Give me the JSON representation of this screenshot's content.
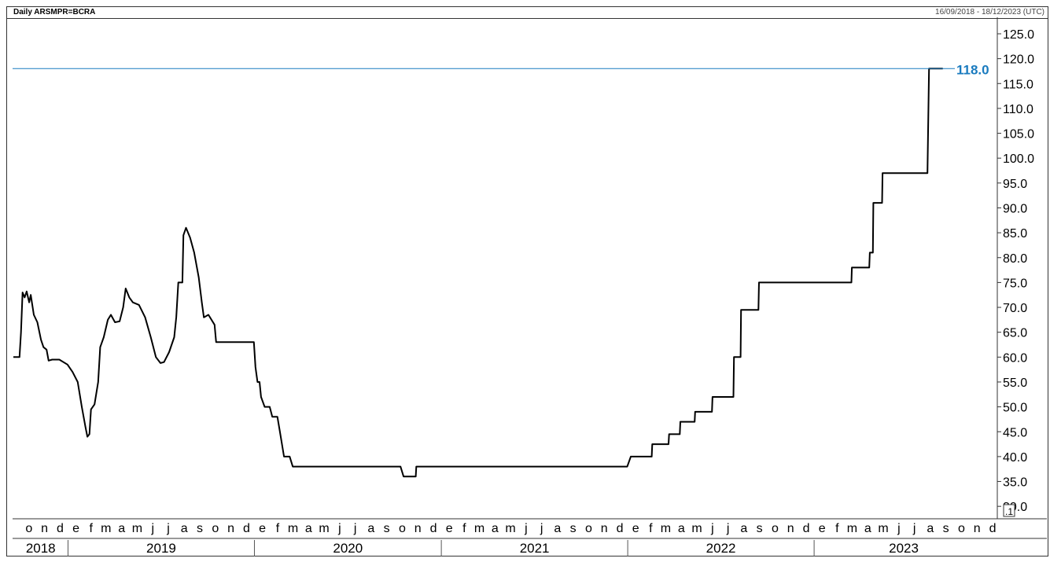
{
  "header": {
    "title": "Daily ARSMPR=BCRA",
    "date_range": "16/09/2018 - 18/12/2023 (UTC)"
  },
  "colors": {
    "series": "#000000",
    "last_line": "#1a7bbf"
  },
  "pane_marker": ".1",
  "chart_data": {
    "type": "line",
    "title": "Daily ARSMPR=BCRA",
    "xlabel": "",
    "ylabel": "",
    "x_range": [
      "2018-09-16",
      "2023-12-18"
    ],
    "ylim": [
      27.5,
      128
    ],
    "y_ticks": [
      "125.0",
      "120.0",
      "115.0",
      "110.0",
      "105.0",
      "100.0",
      "95.0",
      "90.0",
      "85.0",
      "80.0",
      "75.0",
      "70.0",
      "65.0",
      "60.0",
      "55.0",
      "50.0",
      "45.0",
      "40.0",
      "35.0",
      "30.0"
    ],
    "month_ticks": [
      "o",
      "n",
      "d",
      "e",
      "f",
      "m",
      "a",
      "m",
      "j",
      "j",
      "a",
      "s",
      "o",
      "n",
      "d",
      "e",
      "f",
      "m",
      "a",
      "m",
      "j",
      "j",
      "a",
      "s",
      "o",
      "n",
      "d",
      "e",
      "f",
      "m",
      "a",
      "m",
      "j",
      "j",
      "a",
      "s",
      "o",
      "n",
      "d",
      "e",
      "f",
      "m",
      "a",
      "m",
      "j",
      "j",
      "a",
      "s",
      "o",
      "n",
      "d",
      "e",
      "f",
      "m",
      "a",
      "m",
      "j",
      "j",
      "a",
      "s",
      "o",
      "n",
      "d"
    ],
    "years": [
      "2018",
      "2019",
      "2020",
      "2021",
      "2022",
      "2023"
    ],
    "last_value": 118.0,
    "last_value_label": "118.0",
    "series": [
      {
        "points": [
          [
            "2018-09-16",
            60.0
          ],
          [
            "2018-09-28",
            60.0
          ],
          [
            "2018-10-01",
            65.0
          ],
          [
            "2018-10-04",
            73.0
          ],
          [
            "2018-10-08",
            72.0
          ],
          [
            "2018-10-12",
            73.2
          ],
          [
            "2018-10-17",
            71.0
          ],
          [
            "2018-10-20",
            72.5
          ],
          [
            "2018-10-26",
            68.5
          ],
          [
            "2018-11-02",
            67.0
          ],
          [
            "2018-11-09",
            63.5
          ],
          [
            "2018-11-14",
            62.0
          ],
          [
            "2018-11-20",
            61.5
          ],
          [
            "2018-11-24",
            59.3
          ],
          [
            "2018-12-01",
            59.5
          ],
          [
            "2018-12-15",
            59.5
          ],
          [
            "2018-12-31",
            58.5
          ],
          [
            "2019-01-10",
            57.0
          ],
          [
            "2019-01-20",
            55.0
          ],
          [
            "2019-01-28",
            50.0
          ],
          [
            "2019-02-04",
            46.0
          ],
          [
            "2019-02-08",
            44.0
          ],
          [
            "2019-02-12",
            44.5
          ],
          [
            "2019-02-15",
            49.5
          ],
          [
            "2019-02-22",
            50.5
          ],
          [
            "2019-03-01",
            55.0
          ],
          [
            "2019-03-05",
            62.0
          ],
          [
            "2019-03-12",
            64.0
          ],
          [
            "2019-03-20",
            67.5
          ],
          [
            "2019-03-26",
            68.5
          ],
          [
            "2019-04-03",
            67.0
          ],
          [
            "2019-04-12",
            67.2
          ],
          [
            "2019-04-19",
            70.0
          ],
          [
            "2019-04-24",
            73.8
          ],
          [
            "2019-05-01",
            72.0
          ],
          [
            "2019-05-08",
            71.0
          ],
          [
            "2019-05-20",
            70.5
          ],
          [
            "2019-06-01",
            68.0
          ],
          [
            "2019-06-12",
            64.0
          ],
          [
            "2019-06-22",
            60.0
          ],
          [
            "2019-07-01",
            58.8
          ],
          [
            "2019-07-08",
            59.0
          ],
          [
            "2019-07-18",
            61.0
          ],
          [
            "2019-07-28",
            64.0
          ],
          [
            "2019-08-01",
            68.0
          ],
          [
            "2019-08-05",
            75.0
          ],
          [
            "2019-08-13",
            75.0
          ],
          [
            "2019-08-15",
            84.5
          ],
          [
            "2019-08-20",
            86.0
          ],
          [
            "2019-08-28",
            84.0
          ],
          [
            "2019-09-05",
            81.0
          ],
          [
            "2019-09-14",
            76.0
          ],
          [
            "2019-09-20",
            71.0
          ],
          [
            "2019-09-24",
            68.0
          ],
          [
            "2019-10-03",
            68.5
          ],
          [
            "2019-10-15",
            66.5
          ],
          [
            "2019-10-18",
            63.0
          ],
          [
            "2019-12-31",
            63.0
          ],
          [
            "2020-01-03",
            58.0
          ],
          [
            "2020-01-07",
            55.0
          ],
          [
            "2020-01-11",
            55.0
          ],
          [
            "2020-01-14",
            52.0
          ],
          [
            "2020-01-21",
            50.0
          ],
          [
            "2020-01-31",
            50.0
          ],
          [
            "2020-02-05",
            48.0
          ],
          [
            "2020-02-15",
            48.0
          ],
          [
            "2020-02-20",
            45.0
          ],
          [
            "2020-02-28",
            40.0
          ],
          [
            "2020-03-10",
            40.0
          ],
          [
            "2020-03-16",
            38.0
          ],
          [
            "2020-10-13",
            38.0
          ],
          [
            "2020-10-19",
            36.0
          ],
          [
            "2020-11-12",
            36.0
          ],
          [
            "2020-11-13",
            38.0
          ],
          [
            "2021-12-31",
            38.0
          ],
          [
            "2022-01-07",
            40.0
          ],
          [
            "2022-02-17",
            40.0
          ],
          [
            "2022-02-18",
            42.5
          ],
          [
            "2022-03-22",
            42.5
          ],
          [
            "2022-03-23",
            44.5
          ],
          [
            "2022-04-13",
            44.5
          ],
          [
            "2022-04-14",
            47.0
          ],
          [
            "2022-05-12",
            47.0
          ],
          [
            "2022-05-13",
            49.0
          ],
          [
            "2022-06-15",
            49.0
          ],
          [
            "2022-06-16",
            52.0
          ],
          [
            "2022-07-27",
            52.0
          ],
          [
            "2022-07-28",
            60.0
          ],
          [
            "2022-08-10",
            60.0
          ],
          [
            "2022-08-11",
            69.5
          ],
          [
            "2022-09-14",
            69.5
          ],
          [
            "2022-09-15",
            75.0
          ],
          [
            "2023-03-15",
            75.0
          ],
          [
            "2023-03-16",
            78.0
          ],
          [
            "2023-04-19",
            78.0
          ],
          [
            "2023-04-20",
            81.0
          ],
          [
            "2023-04-26",
            81.0
          ],
          [
            "2023-04-27",
            91.0
          ],
          [
            "2023-05-14",
            91.0
          ],
          [
            "2023-05-15",
            97.0
          ],
          [
            "2023-08-11",
            97.0
          ],
          [
            "2023-08-14",
            118.0
          ],
          [
            "2023-09-10",
            118.0
          ]
        ]
      }
    ]
  }
}
